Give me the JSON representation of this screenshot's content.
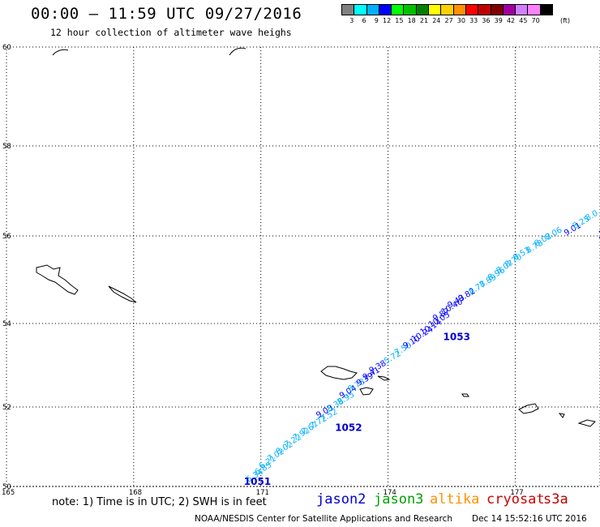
{
  "header": {
    "title": "00:00 – 11:59 UTC 09/27/2016",
    "subtitle": "12 hour collection of altimeter wave heighs"
  },
  "colorbar": {
    "unit": "(ft)",
    "swatches": [
      {
        "color": "#808080",
        "label": "3"
      },
      {
        "color": "#00ffff",
        "label": "6"
      },
      {
        "color": "#00b0ff",
        "label": "9"
      },
      {
        "color": "#0000ff",
        "label": "12"
      },
      {
        "color": "#00ff00",
        "label": "15"
      },
      {
        "color": "#00c000",
        "label": "18"
      },
      {
        "color": "#008000",
        "label": "21"
      },
      {
        "color": "#ffff00",
        "label": "24"
      },
      {
        "color": "#ffd000",
        "label": "27"
      },
      {
        "color": "#ff9000",
        "label": "30"
      },
      {
        "color": "#ff0000",
        "label": "33"
      },
      {
        "color": "#c00000",
        "label": "36"
      },
      {
        "color": "#800000",
        "label": "39"
      },
      {
        "color": "#a000a0",
        "label": "42"
      },
      {
        "color": "#d080ff",
        "label": "45"
      },
      {
        "color": "#ff80ff",
        "label": "70"
      },
      {
        "color": "#000000",
        "label": ""
      }
    ]
  },
  "map": {
    "lat_labels": [
      "60",
      "58",
      "56",
      "54",
      "52",
      "50"
    ],
    "lon_labels": [
      "165",
      "168",
      "171",
      "174",
      "177"
    ],
    "lat_range": [
      50,
      60
    ],
    "lon_range": [
      165,
      179
    ],
    "observations": [
      {
        "lon": 170.7,
        "lat": 50.1,
        "v": "6.34",
        "c": "#00b0ff"
      },
      {
        "lon": 170.9,
        "lat": 50.28,
        "v": "6.85",
        "c": "#00b0ff"
      },
      {
        "lon": 171.0,
        "lat": 50.44,
        "v": "6.21",
        "c": "#00b0ff"
      },
      {
        "lon": 171.2,
        "lat": 50.62,
        "v": "7.02",
        "c": "#00b0ff"
      },
      {
        "lon": 171.4,
        "lat": 50.8,
        "v": "8.02",
        "c": "#00b0ff"
      },
      {
        "lon": 171.6,
        "lat": 50.98,
        "v": "7.22",
        "c": "#00b0ff"
      },
      {
        "lon": 171.8,
        "lat": 51.15,
        "v": "7.92",
        "c": "#00b0ff"
      },
      {
        "lon": 172.0,
        "lat": 51.3,
        "v": "7.67",
        "c": "#00b0ff"
      },
      {
        "lon": 172.2,
        "lat": 51.45,
        "v": "7.72",
        "c": "#00b0ff"
      },
      {
        "lon": 172.45,
        "lat": 51.62,
        "v": "7.52",
        "c": "#00b0ff"
      },
      {
        "lon": 172.35,
        "lat": 51.72,
        "v": "9.03",
        "c": "#0000ff"
      },
      {
        "lon": 172.6,
        "lat": 51.88,
        "v": "8.38",
        "c": "#00b0ff"
      },
      {
        "lon": 172.85,
        "lat": 52.05,
        "v": "8.95",
        "c": "#00b0ff"
      },
      {
        "lon": 172.9,
        "lat": 52.2,
        "v": "9.04",
        "c": "#0000ff"
      },
      {
        "lon": 173.1,
        "lat": 52.36,
        "v": "8.78",
        "c": "#00b0ff"
      },
      {
        "lon": 173.3,
        "lat": 52.5,
        "v": "9.39",
        "c": "#0000ff"
      },
      {
        "lon": 173.45,
        "lat": 52.64,
        "v": "9.41",
        "c": "#0000ff"
      },
      {
        "lon": 173.6,
        "lat": 52.8,
        "v": "9.38",
        "c": "#0000ff"
      },
      {
        "lon": 173.95,
        "lat": 53.03,
        "v": "5.72",
        "c": "#00b0ff"
      },
      {
        "lon": 174.2,
        "lat": 53.23,
        "v": "7.50",
        "c": "#00b0ff"
      },
      {
        "lon": 174.4,
        "lat": 53.39,
        "v": "9.10",
        "c": "#0000ff"
      },
      {
        "lon": 174.6,
        "lat": 53.55,
        "v": "10.24",
        "c": "#0000ff"
      },
      {
        "lon": 174.8,
        "lat": 53.72,
        "v": "10.14",
        "c": "#0000ff"
      },
      {
        "lon": 175.0,
        "lat": 53.9,
        "v": "10.05",
        "c": "#0000ff"
      },
      {
        "lon": 175.1,
        "lat": 54.05,
        "v": "9.87",
        "c": "#0000ff"
      },
      {
        "lon": 175.3,
        "lat": 54.2,
        "v": "10.40",
        "c": "#0000ff"
      },
      {
        "lon": 175.45,
        "lat": 54.35,
        "v": "9.43",
        "c": "#0000ff"
      },
      {
        "lon": 175.7,
        "lat": 54.5,
        "v": "9.82",
        "c": "#0000ff"
      },
      {
        "lon": 175.95,
        "lat": 54.66,
        "v": "8.77",
        "c": "#00b0ff"
      },
      {
        "lon": 176.2,
        "lat": 54.82,
        "v": "8.89",
        "c": "#00b0ff"
      },
      {
        "lon": 176.4,
        "lat": 54.98,
        "v": "8.96",
        "c": "#00b0ff"
      },
      {
        "lon": 176.6,
        "lat": 55.14,
        "v": "8.07",
        "c": "#00b0ff"
      },
      {
        "lon": 176.8,
        "lat": 55.28,
        "v": "8.70",
        "c": "#00b0ff"
      },
      {
        "lon": 177.0,
        "lat": 55.44,
        "v": "8.53",
        "c": "#00b0ff"
      },
      {
        "lon": 177.3,
        "lat": 55.6,
        "v": "8.78",
        "c": "#00b0ff"
      },
      {
        "lon": 177.5,
        "lat": 55.76,
        "v": "8.02",
        "c": "#00b0ff"
      },
      {
        "lon": 177.75,
        "lat": 55.9,
        "v": "8.06",
        "c": "#00b0ff"
      },
      {
        "lon": 178.2,
        "lat": 56.0,
        "v": "9.01",
        "c": "#0000ff"
      },
      {
        "lon": 178.4,
        "lat": 56.15,
        "v": "8.25",
        "c": "#00b0ff"
      },
      {
        "lon": 178.7,
        "lat": 56.33,
        "v": "8.0",
        "c": "#00b0ff"
      }
    ],
    "pass_labels": [
      {
        "lon": 170.6,
        "lat": 50.04,
        "v": "1051"
      },
      {
        "lon": 172.75,
        "lat": 51.4,
        "v": "1052"
      },
      {
        "lon": 175.3,
        "lat": 53.6,
        "v": "1053"
      },
      {
        "lon": 178.95,
        "lat": 55.95,
        "v": "1"
      }
    ]
  },
  "footer": {
    "note": "note: 1) Time is in UTC; 2) SWH is in feet",
    "satellites": [
      {
        "name": "jason2",
        "color": "#0000d0"
      },
      {
        "name": "jason3",
        "color": "#00a000"
      },
      {
        "name": "altika",
        "color": "#ff9000"
      },
      {
        "name": "cryosat",
        "color": "#d00000"
      },
      {
        "name": "s3a",
        "color": "#c00000"
      }
    ],
    "credit": "NOAA/NESDIS Center for Satellite Applications and Research",
    "timestamp": "Dec 14 15:52:16 UTC 2016"
  }
}
